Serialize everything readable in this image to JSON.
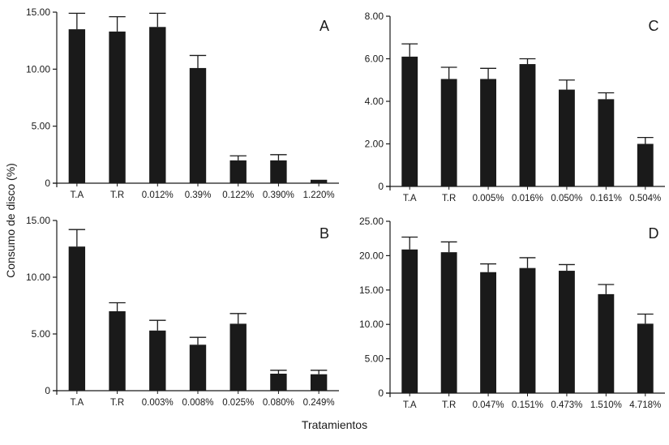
{
  "figure": {
    "ylabel": "Consumo de disco (%)",
    "xlabel": "Tratamientos",
    "bar_color": "#1a1a1a",
    "axis_color": "#1a1a1a"
  },
  "chart_data": [
    {
      "type": "bar",
      "panel_label": "A",
      "categories": [
        "T.A",
        "T.R",
        "0.012%",
        "0.39%",
        "0.122%",
        "0.390%",
        "1.220%"
      ],
      "values": [
        13.5,
        13.3,
        13.7,
        10.1,
        2.0,
        2.0,
        0.3
      ],
      "errors": [
        1.4,
        1.3,
        1.2,
        1.1,
        0.4,
        0.5,
        0.0
      ],
      "yticks": [
        "0",
        "5.00",
        "10.00",
        "15.00"
      ],
      "ylim": [
        0,
        15
      ]
    },
    {
      "type": "bar",
      "panel_label": "C",
      "categories": [
        "T.A",
        "T.R",
        "0.005%",
        "0.016%",
        "0.050%",
        "0.161%",
        "0.504%"
      ],
      "values": [
        6.1,
        5.05,
        5.05,
        5.75,
        4.55,
        4.1,
        2.0
      ],
      "errors": [
        0.6,
        0.55,
        0.5,
        0.25,
        0.45,
        0.3,
        0.3
      ],
      "yticks": [
        "0",
        "2.00",
        "4.00",
        "6.00",
        "8.00"
      ],
      "ylim": [
        0,
        8
      ]
    },
    {
      "type": "bar",
      "panel_label": "B",
      "categories": [
        "T.A",
        "T.R",
        "0.003%",
        "0.008%",
        "0.025%",
        "0.080%",
        "0.249%"
      ],
      "values": [
        12.7,
        7.0,
        5.3,
        4.05,
        5.9,
        1.5,
        1.45
      ],
      "errors": [
        1.5,
        0.75,
        0.9,
        0.65,
        0.9,
        0.3,
        0.35
      ],
      "yticks": [
        "0",
        "5.00",
        "10.00",
        "15.00"
      ],
      "ylim": [
        0,
        15
      ]
    },
    {
      "type": "bar",
      "panel_label": "D",
      "categories": [
        "T.A",
        "T.R",
        "0.047%",
        "0.151%",
        "0.473%",
        "1.510%",
        "4.718%"
      ],
      "values": [
        20.9,
        20.5,
        17.6,
        18.2,
        17.8,
        14.4,
        10.1
      ],
      "errors": [
        1.8,
        1.5,
        1.2,
        1.5,
        0.9,
        1.4,
        1.4
      ],
      "yticks": [
        "0",
        "5.00",
        "10.00",
        "15.00",
        "20.00",
        "25.00"
      ],
      "ylim": [
        0,
        25
      ]
    }
  ]
}
